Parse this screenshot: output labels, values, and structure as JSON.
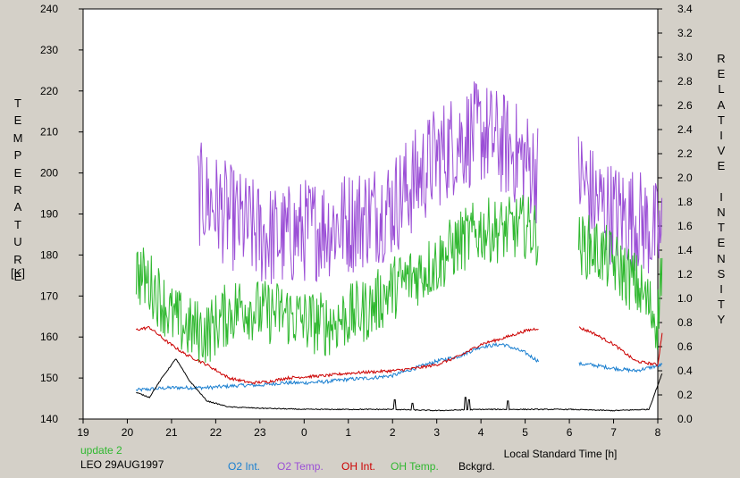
{
  "chart_data": {
    "type": "line",
    "left_axis_label_letters": [
      "T",
      "E",
      "M",
      "P",
      "E",
      "R",
      "A",
      "T",
      "U",
      "R",
      "E"
    ],
    "left_axis_unit": "[K]",
    "right_axis_label_letters": [
      "R",
      "E",
      "L",
      "A",
      "T",
      "I",
      "V",
      "E",
      "",
      "I",
      "N",
      "T",
      "E",
      "N",
      "S",
      "I",
      "T",
      "Y"
    ],
    "xlabel": "Local Standard Time [h]",
    "x_ticks": [
      "19",
      "20",
      "21",
      "22",
      "23",
      "0",
      "1",
      "2",
      "3",
      "4",
      "5",
      "6",
      "7",
      "8"
    ],
    "y_left_ticks": [
      "140",
      "150",
      "160",
      "170",
      "180",
      "190",
      "200",
      "210",
      "220",
      "230",
      "240"
    ],
    "y_right_ticks": [
      "0.0",
      "0.2",
      "0.4",
      "0.6",
      "0.8",
      "1.0",
      "1.2",
      "1.4",
      "1.6",
      "1.8",
      "2.0",
      "2.2",
      "2.4",
      "2.6",
      "2.8",
      "3.0",
      "3.2",
      "3.4"
    ],
    "xlim": [
      19,
      32
    ],
    "ylim_left": [
      140,
      240
    ],
    "ylim_right": [
      0,
      3.4
    ],
    "grid": false,
    "series": [
      {
        "name": "O2 Int.",
        "color": "#1a7fd0",
        "axis": "right",
        "x": [
          20.2,
          20.6,
          21.0,
          21.4,
          21.8,
          22.2,
          22.6,
          23.0,
          23.5,
          24.0,
          24.5,
          25.0,
          25.5,
          26.0,
          26.5,
          27.0,
          27.5,
          28.0,
          28.5,
          29.0,
          29.3,
          30.5,
          31.0,
          31.5,
          32.1
        ],
        "y": [
          0.24,
          0.25,
          0.26,
          0.26,
          0.26,
          0.27,
          0.28,
          0.28,
          0.3,
          0.3,
          0.31,
          0.33,
          0.34,
          0.36,
          0.42,
          0.48,
          0.52,
          0.6,
          0.62,
          0.55,
          0.48,
          0.45,
          0.42,
          0.4,
          0.45
        ]
      },
      {
        "name": "O2 Temp.",
        "color": "#9b4fd6",
        "axis": "left",
        "x": [
          21.6,
          22.0,
          22.5,
          23.0,
          23.5,
          24.0,
          24.5,
          25.0,
          25.5,
          26.0,
          26.5,
          27.0,
          27.5,
          28.0,
          28.5,
          29.0,
          29.5,
          30.2,
          30.5,
          31.0,
          31.5,
          32.1
        ],
        "y": [
          195,
          192,
          188,
          185,
          184,
          186,
          187,
          188,
          190,
          192,
          198,
          204,
          208,
          210,
          207,
          203,
          198,
          200,
          194,
          190,
          189,
          184
        ]
      },
      {
        "name": "OH Int.",
        "color": "#cc0000",
        "axis": "right",
        "x": [
          20.2,
          20.5,
          20.9,
          21.3,
          21.8,
          22.3,
          22.8,
          23.2,
          23.6,
          24.0,
          24.5,
          25.0,
          25.5,
          26.0,
          26.5,
          27.0,
          27.5,
          28.0,
          28.5,
          29.0,
          29.5,
          30.2,
          30.5,
          31.0,
          31.5,
          32.0,
          32.1
        ],
        "y": [
          0.74,
          0.76,
          0.64,
          0.54,
          0.45,
          0.34,
          0.3,
          0.31,
          0.34,
          0.35,
          0.36,
          0.38,
          0.39,
          0.4,
          0.42,
          0.45,
          0.52,
          0.62,
          0.67,
          0.73,
          0.77,
          0.76,
          0.72,
          0.62,
          0.48,
          0.45,
          0.72
        ]
      },
      {
        "name": "OH Temp.",
        "color": "#30b830",
        "axis": "left",
        "x": [
          20.2,
          20.6,
          21.0,
          21.4,
          21.8,
          22.2,
          22.6,
          23.0,
          23.5,
          24.0,
          24.5,
          25.0,
          25.5,
          26.0,
          26.5,
          27.0,
          27.5,
          28.0,
          28.5,
          29.0,
          29.3,
          30.2,
          30.5,
          31.0,
          31.5,
          32.0,
          32.1
        ],
        "y": [
          176,
          172,
          165,
          162,
          161,
          165,
          168,
          166,
          166,
          164,
          163,
          165,
          167,
          172,
          175,
          178,
          183,
          186,
          186,
          187,
          185,
          182,
          182,
          178,
          173,
          164,
          180
        ]
      },
      {
        "name": "Bckgrd.",
        "color": "#000000",
        "axis": "right",
        "x": [
          20.2,
          20.5,
          20.8,
          21.1,
          21.4,
          21.8,
          22.3,
          23.0,
          24.0,
          25.0,
          26.0,
          27.0,
          28.0,
          29.0,
          30.0,
          31.0,
          31.8,
          32.1
        ],
        "y": [
          0.22,
          0.18,
          0.35,
          0.5,
          0.32,
          0.15,
          0.1,
          0.09,
          0.08,
          0.08,
          0.08,
          0.07,
          0.08,
          0.08,
          0.08,
          0.07,
          0.08,
          0.38
        ],
        "spikes": [
          {
            "x": 26.05,
            "y": 0.16
          },
          {
            "x": 26.45,
            "y": 0.13
          },
          {
            "x": 27.65,
            "y": 0.18
          },
          {
            "x": 27.72,
            "y": 0.16
          },
          {
            "x": 28.6,
            "y": 0.15
          }
        ]
      }
    ]
  },
  "footer": {
    "line1": "update 2",
    "line1_color": "#30b830",
    "line2": "LEO 29AUG1997"
  }
}
